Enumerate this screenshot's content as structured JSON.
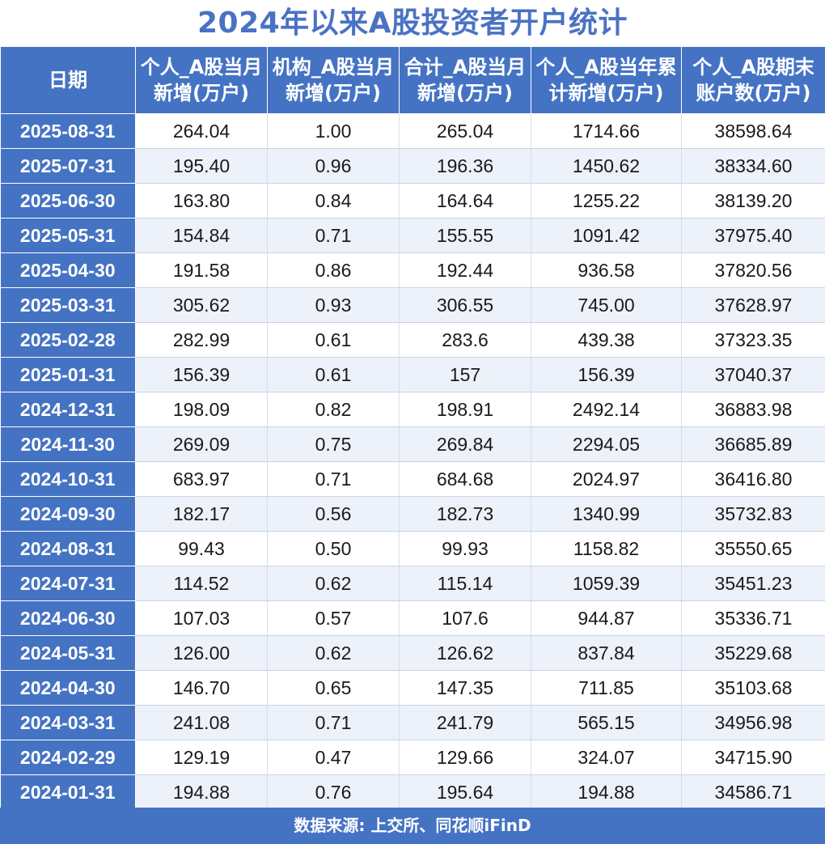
{
  "title": "2024年以来A股投资者开户统计",
  "table": {
    "headers": [
      "日期",
      "个人_A股当月新增(万户)",
      "机构_A股当月新增(万户)",
      "合计_A股当月新增(万户)",
      "个人_A股当年累计新增(万户)",
      "个人_A股期末账户数(万户)"
    ],
    "rows": [
      [
        "2025-08-31",
        "264.04",
        "1.00",
        "265.04",
        "1714.66",
        "38598.64"
      ],
      [
        "2025-07-31",
        "195.40",
        "0.96",
        "196.36",
        "1450.62",
        "38334.60"
      ],
      [
        "2025-06-30",
        "163.80",
        "0.84",
        "164.64",
        "1255.22",
        "38139.20"
      ],
      [
        "2025-05-31",
        "154.84",
        "0.71",
        "155.55",
        "1091.42",
        "37975.40"
      ],
      [
        "2025-04-30",
        "191.58",
        "0.86",
        "192.44",
        "936.58",
        "37820.56"
      ],
      [
        "2025-03-31",
        "305.62",
        "0.93",
        "306.55",
        "745.00",
        "37628.97"
      ],
      [
        "2025-02-28",
        "282.99",
        "0.61",
        "283.6",
        "439.38",
        "37323.35"
      ],
      [
        "2025-01-31",
        "156.39",
        "0.61",
        "157",
        "156.39",
        "37040.37"
      ],
      [
        "2024-12-31",
        "198.09",
        "0.82",
        "198.91",
        "2492.14",
        "36883.98"
      ],
      [
        "2024-11-30",
        "269.09",
        "0.75",
        "269.84",
        "2294.05",
        "36685.89"
      ],
      [
        "2024-10-31",
        "683.97",
        "0.71",
        "684.68",
        "2024.97",
        "36416.80"
      ],
      [
        "2024-09-30",
        "182.17",
        "0.56",
        "182.73",
        "1340.99",
        "35732.83"
      ],
      [
        "2024-08-31",
        "99.43",
        "0.50",
        "99.93",
        "1158.82",
        "35550.65"
      ],
      [
        "2024-07-31",
        "114.52",
        "0.62",
        "115.14",
        "1059.39",
        "35451.23"
      ],
      [
        "2024-06-30",
        "107.03",
        "0.57",
        "107.6",
        "944.87",
        "35336.71"
      ],
      [
        "2024-05-31",
        "126.00",
        "0.62",
        "126.62",
        "837.84",
        "35229.68"
      ],
      [
        "2024-04-30",
        "146.70",
        "0.65",
        "147.35",
        "711.85",
        "35103.68"
      ],
      [
        "2024-03-31",
        "241.08",
        "0.71",
        "241.79",
        "565.15",
        "34956.98"
      ],
      [
        "2024-02-29",
        "129.19",
        "0.47",
        "129.66",
        "324.07",
        "34715.90"
      ],
      [
        "2024-01-31",
        "194.88",
        "0.76",
        "195.64",
        "194.88",
        "34586.71"
      ]
    ]
  },
  "footer": "数据来源: 上交所、同花顺iFinD",
  "colors": {
    "header_bg": "#4573c4",
    "title_text": "#4a72c4",
    "row_alt_bg": "#edf1f9"
  }
}
